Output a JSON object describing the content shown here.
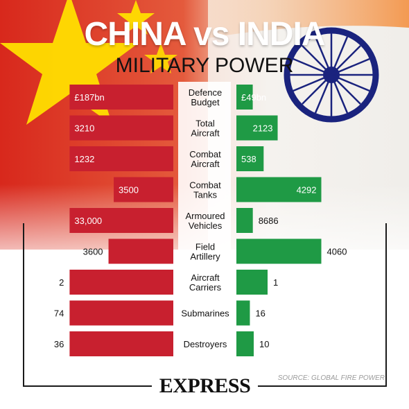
{
  "header": {
    "title": "CHINA vs INDIA",
    "subtitle": "MILITARY POWER"
  },
  "footer": {
    "brand": "EXPRESS",
    "source": "SOURCE: GLOBAL FIRE POWER"
  },
  "colors": {
    "china": "#c8202f",
    "india": "#1f9a45",
    "china_flag": "#de2910",
    "star": "#ffde00",
    "saffron": "#ff9933",
    "chakra": "#1a237e"
  },
  "chart_data": {
    "type": "bar",
    "categories": [
      "Defence Budget",
      "Total Aircraft",
      "Combat Aircraft",
      "Combat Tanks",
      "Armoured Vehicles",
      "Field Artillery",
      "Aircraft Carriers",
      "Submarines",
      "Destroyers"
    ],
    "category_lines": [
      [
        "Defence",
        "Budget"
      ],
      [
        "Total",
        "Aircraft"
      ],
      [
        "Combat",
        "Aircraft"
      ],
      [
        "Combat",
        "Tanks"
      ],
      [
        "Armoured",
        "Vehicles"
      ],
      [
        "Field",
        "Artillery"
      ],
      [
        "Aircraft",
        "Carriers"
      ],
      [
        "Submarines"
      ],
      [
        "Destroyers"
      ]
    ],
    "series": [
      {
        "name": "CHINA",
        "values": [
          187,
          3210,
          1232,
          3500,
          33000,
          3600,
          2,
          74,
          36
        ],
        "labels": [
          "£187bn",
          "3210",
          "1232",
          "3500",
          "33,000",
          "3600",
          "2",
          "74",
          "36"
        ],
        "label_inside": [
          true,
          true,
          true,
          true,
          true,
          false,
          false,
          false,
          false
        ]
      },
      {
        "name": "INDIA",
        "values": [
          49,
          2123,
          538,
          4292,
          8686,
          4060,
          1,
          16,
          10
        ],
        "labels": [
          "£49bn",
          "2123",
          "538",
          "4292",
          "8686",
          "4060",
          "1",
          "16",
          "10"
        ],
        "label_inside": [
          true,
          true,
          true,
          true,
          false,
          false,
          false,
          false,
          false
        ]
      }
    ],
    "layout": "butterfly",
    "legend": "none"
  }
}
